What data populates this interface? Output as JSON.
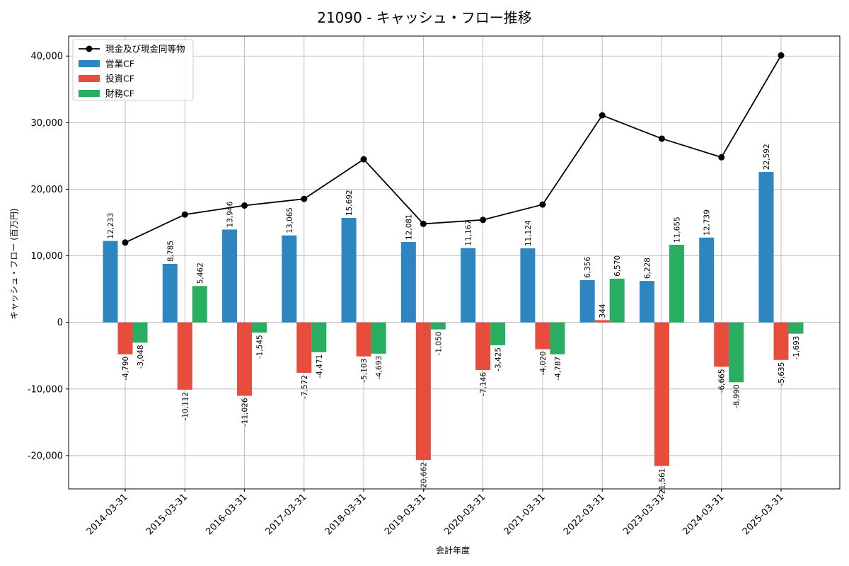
{
  "chart_data": {
    "type": "bar",
    "title": "21090 - キャッシュ・フロー推移",
    "xlabel": "会計年度",
    "ylabel": "キャッシュ・フロー (百万円)",
    "ylim": [
      -25000,
      43000
    ],
    "yticks": [
      -20000,
      -10000,
      0,
      10000,
      20000,
      30000,
      40000
    ],
    "ytick_labels": [
      "-20,000",
      "-10,000",
      "0",
      "10,000",
      "20,000",
      "30,000",
      "40,000"
    ],
    "grid": true,
    "legend_position": "top-left",
    "categories": [
      "2014-03-31",
      "2015-03-31",
      "2016-03-31",
      "2017-03-31",
      "2018-03-31",
      "2019-03-31",
      "2020-03-31",
      "2021-03-31",
      "2022-03-31",
      "2023-03-31",
      "2024-03-31",
      "2025-03-31"
    ],
    "series": [
      {
        "name": "営業CF",
        "kind": "bar",
        "color": "#2e86c1",
        "values": [
          12233,
          8785,
          13946,
          13065,
          15692,
          12081,
          11167,
          11124,
          6356,
          6228,
          12739,
          22592
        ],
        "labels": [
          "12,233",
          "8,785",
          "13,946",
          "13,065",
          "15,692",
          "12,081",
          "11,167",
          "11,124",
          "6,356",
          "6,228",
          "12,739",
          "22,592"
        ]
      },
      {
        "name": "投資CF",
        "kind": "bar",
        "color": "#e74c3c",
        "values": [
          -4790,
          -10112,
          -11026,
          -7572,
          -5103,
          -20662,
          -7146,
          -4020,
          344,
          -21561,
          -6665,
          -5635
        ],
        "labels": [
          "-4,790",
          "-10,112",
          "-11,026",
          "-7,572",
          "-5,103",
          "-20,662",
          "-7,146",
          "-4,020",
          "344",
          "-21,561",
          "-6,665",
          "-5,635"
        ]
      },
      {
        "name": "財務CF",
        "kind": "bar",
        "color": "#27ae60",
        "values": [
          -3048,
          5462,
          -1545,
          -4471,
          -4693,
          -1050,
          -3425,
          -4787,
          6570,
          11655,
          -8990,
          -1693
        ],
        "labels": [
          "-3,048",
          "5,462",
          "-1,545",
          "-4,471",
          "-4,693",
          "-1,050",
          "-3,425",
          "-4,787",
          "6,570",
          "11,655",
          "-8,990",
          "-1,693"
        ]
      },
      {
        "name": "現金及び現金同等物",
        "kind": "line",
        "color": "#000000",
        "values": [
          12000,
          16200,
          17550,
          18550,
          24500,
          14800,
          15400,
          17700,
          31100,
          27600,
          24800,
          40100
        ]
      }
    ]
  }
}
